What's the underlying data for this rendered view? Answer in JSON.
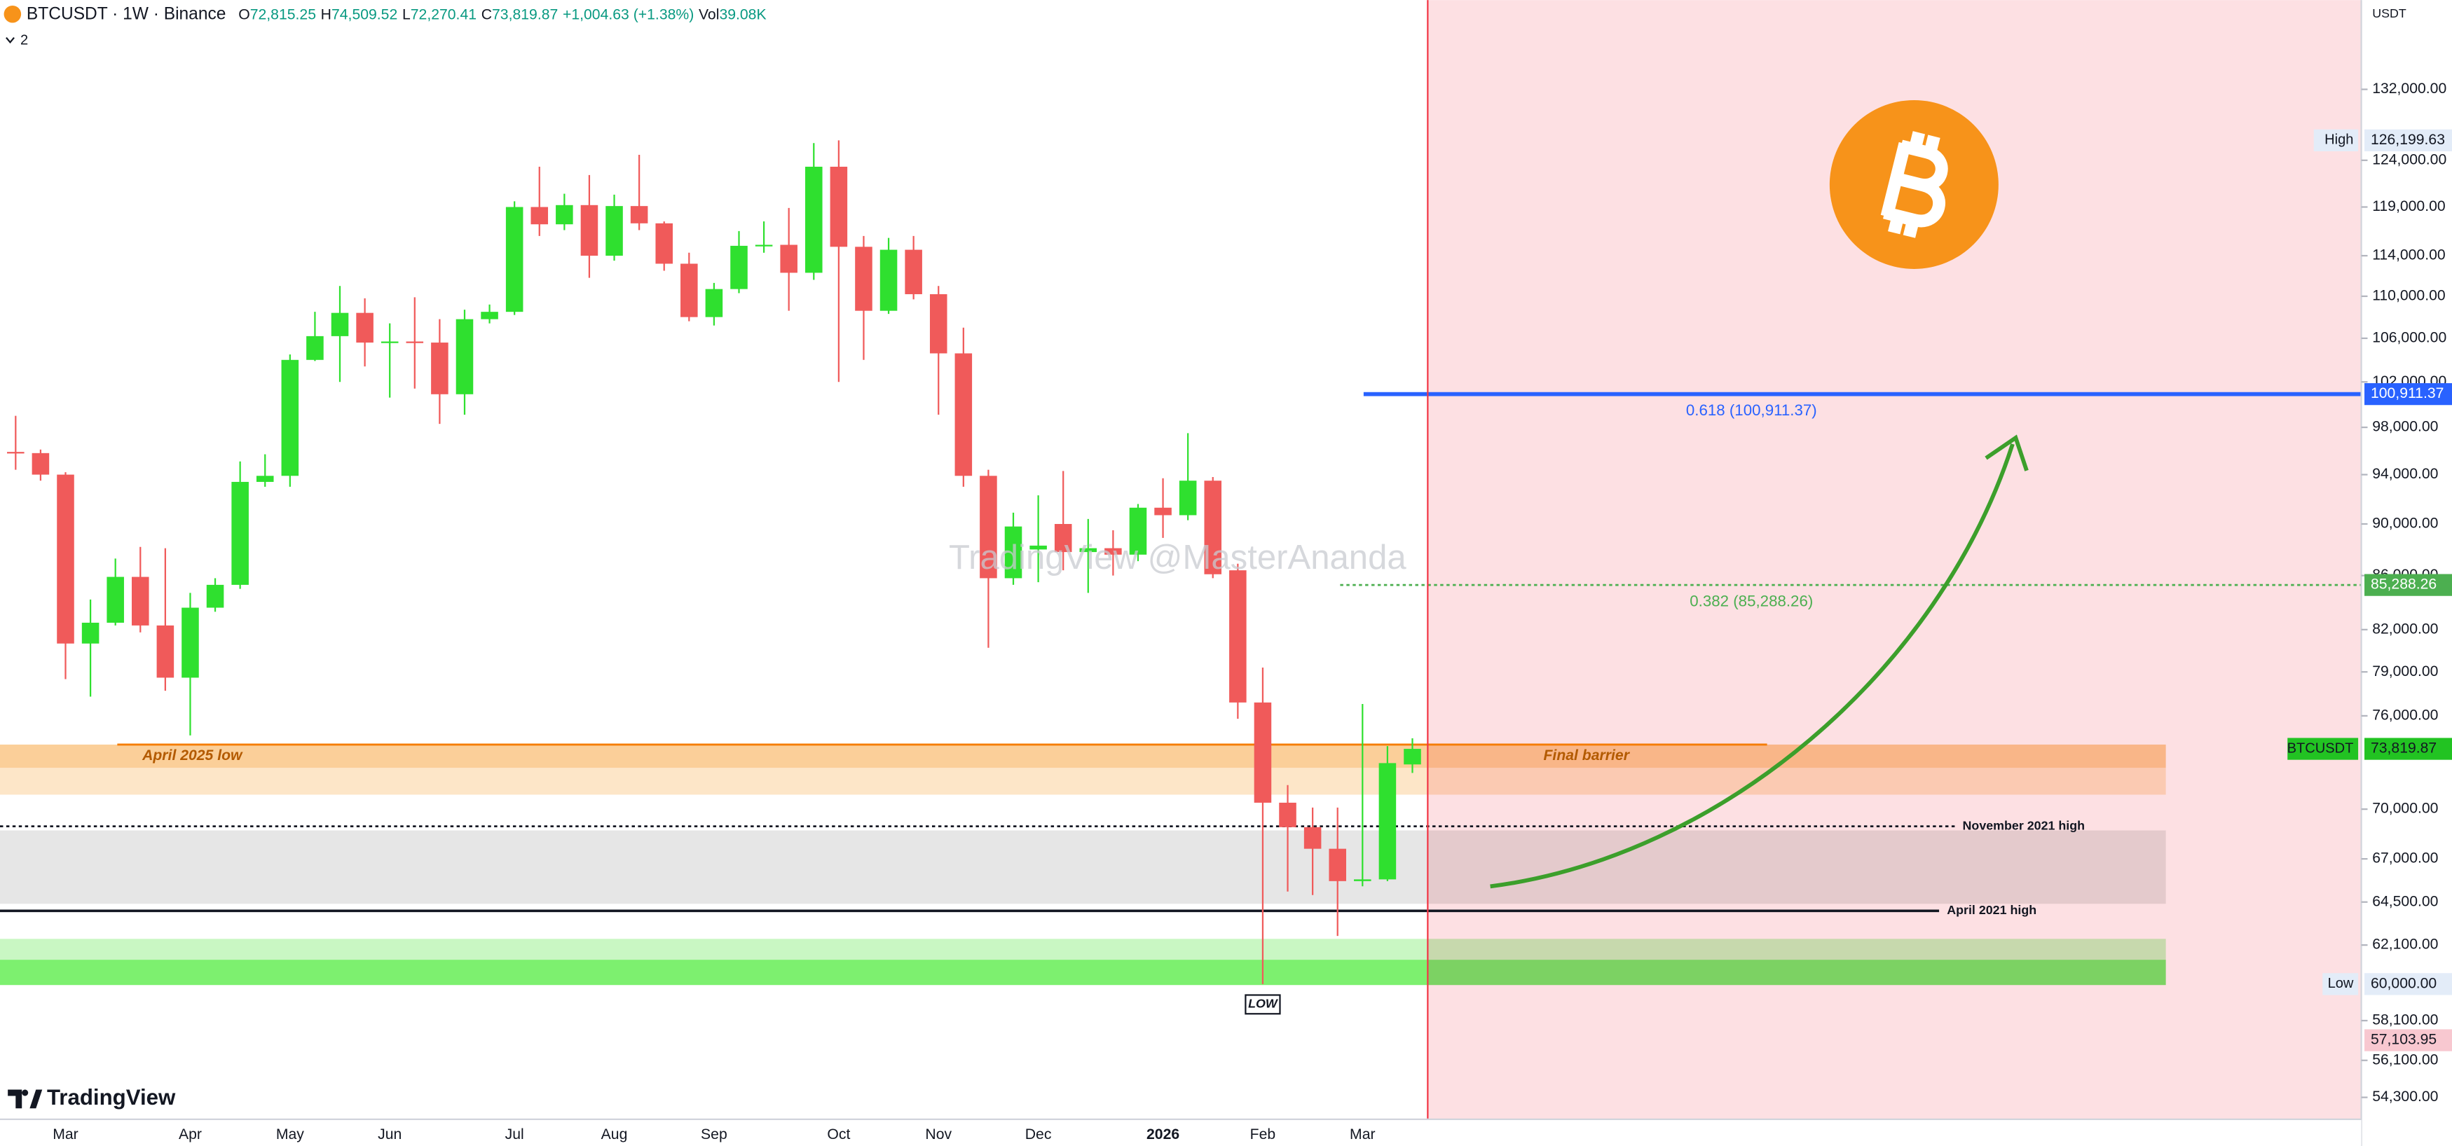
{
  "chart_data": {
    "type": "candlestick",
    "symbol_line": "BTCUSDT · 1W · Binance",
    "readout": [
      {
        "key": "O",
        "value": "72,815.25"
      },
      {
        "key": "H",
        "value": "74,509.52"
      },
      {
        "key": "L",
        "value": "72,270.41"
      },
      {
        "key": "C",
        "value": "73,819.87"
      }
    ],
    "change": "+1,004.63 (+1.38%)",
    "volume_key": "Vol",
    "volume": "39.08K",
    "indicators": 2,
    "axis_unit": "USDT",
    "watermark": "TradingView @MasterAnanda",
    "branding": "TradingView",
    "log_scale": true,
    "ylim": [
      53260,
      142800
    ],
    "yticks": [
      {
        "value": 132000,
        "label": "132,000.00"
      },
      {
        "value": 124000,
        "label": "124,000.00"
      },
      {
        "value": 119000,
        "label": "119,000.00"
      },
      {
        "value": 114000,
        "label": "114,000.00"
      },
      {
        "value": 110000,
        "label": "110,000.00"
      },
      {
        "value": 106000,
        "label": "106,000.00"
      },
      {
        "value": 102000,
        "label": "102,000.00"
      },
      {
        "value": 98000,
        "label": "98,000.00"
      },
      {
        "value": 94000,
        "label": "94,000.00"
      },
      {
        "value": 90000,
        "label": "90,000.00"
      },
      {
        "value": 86000,
        "label": "86,000.00"
      },
      {
        "value": 82000,
        "label": "82,000.00"
      },
      {
        "value": 79000,
        "label": "79,000.00"
      },
      {
        "value": 76000,
        "label": "76,000.00"
      },
      {
        "value": 70000,
        "label": "70,000.00"
      },
      {
        "value": 67000,
        "label": "67,000.00"
      },
      {
        "value": 64500,
        "label": "64,500.00"
      },
      {
        "value": 62100,
        "label": "62,100.00"
      },
      {
        "value": 58100,
        "label": "58,100.00"
      },
      {
        "value": 56100,
        "label": "56,100.00"
      },
      {
        "value": 54300,
        "label": "54,300.00"
      }
    ],
    "categories": [
      null,
      null,
      "Mar",
      null,
      null,
      null,
      null,
      "Apr",
      null,
      null,
      null,
      "May",
      null,
      null,
      null,
      "Jun",
      null,
      null,
      null,
      null,
      "Jul",
      null,
      null,
      null,
      "Aug",
      null,
      null,
      null,
      "Sep",
      null,
      null,
      null,
      null,
      "Oct",
      null,
      null,
      null,
      "Nov",
      null,
      null,
      null,
      "Dec",
      null,
      null,
      null,
      null,
      "2026",
      null,
      null,
      null,
      "Feb",
      null,
      null,
      null,
      "Mar",
      null,
      null
    ],
    "open": [
      95900,
      95800,
      94000,
      81000,
      82500,
      85900,
      82300,
      78600,
      83600,
      85300,
      93400,
      93900,
      104000,
      106200,
      108400,
      105600,
      105700,
      105600,
      100900,
      107800,
      108500,
      119000,
      117200,
      119200,
      114000,
      119100,
      117300,
      113200,
      108000,
      110700,
      115000,
      115100,
      112300,
      123300,
      114900,
      108600,
      114600,
      110200,
      104600,
      93900,
      85800,
      88000,
      90000,
      87800,
      88100,
      87600,
      91300,
      90700,
      93500,
      86400,
      76900,
      70400,
      68900,
      67600,
      65700,
      65800,
      72815.25
    ],
    "high": [
      99000,
      96100,
      94200,
      84200,
      87300,
      88200,
      88100,
      84700,
      85800,
      95100,
      95700,
      104500,
      108500,
      111000,
      109800,
      107400,
      109900,
      107800,
      108700,
      109200,
      119600,
      123300,
      120400,
      122400,
      120300,
      124600,
      117500,
      114300,
      111300,
      116500,
      117500,
      118900,
      125900,
      126199.63,
      116000,
      115800,
      116000,
      111000,
      107000,
      94400,
      90900,
      92300,
      94300,
      90400,
      89500,
      91600,
      93700,
      97500,
      93800,
      86900,
      79300,
      71500,
      70100,
      70100,
      76800,
      74000,
      74509.52
    ],
    "low": [
      94400,
      93500,
      78500,
      77300,
      82300,
      81800,
      77700,
      74700,
      83300,
      85000,
      93000,
      93000,
      103900,
      102000,
      103400,
      100600,
      101400,
      98300,
      99100,
      107400,
      108200,
      116000,
      116600,
      111800,
      113500,
      116600,
      112500,
      107600,
      107200,
      110300,
      114300,
      108600,
      111600,
      102000,
      104000,
      108300,
      109700,
      99100,
      93000,
      80700,
      85300,
      85500,
      86400,
      84700,
      86000,
      87100,
      88900,
      90300,
      85800,
      75800,
      60000,
      65100,
      64900,
      62600,
      65400,
      65700,
      72270.41
    ],
    "close": [
      95800,
      94000,
      81000,
      82500,
      85900,
      82300,
      78600,
      83600,
      85300,
      93400,
      93900,
      104000,
      106200,
      108400,
      105600,
      105700,
      105600,
      100900,
      107800,
      108500,
      119000,
      117200,
      119200,
      114000,
      119100,
      117300,
      113200,
      108000,
      110700,
      115000,
      115100,
      112300,
      123300,
      114900,
      108600,
      114600,
      110200,
      104600,
      93900,
      85800,
      89800,
      88300,
      87800,
      88100,
      87600,
      91300,
      90700,
      93500,
      86100,
      76900,
      70400,
      68900,
      67600,
      65700,
      65800,
      72900,
      73819.87
    ],
    "up_color": "#2fe02f",
    "down_color": "#f05a5a",
    "wick_color": "#555555",
    "zones": [
      {
        "from": 72600,
        "to": 74100,
        "color": "#fbcf99",
        "line_color": "#f57c00",
        "labels": [
          "April 2025 low",
          "Final barrier"
        ]
      },
      {
        "from": 70900,
        "to": 72600,
        "color": "#fde6c8"
      },
      {
        "from": 64400,
        "to": 68700,
        "color": "#e6e6e6"
      },
      {
        "from": 61300,
        "to": 62440,
        "color": "#c9f7c3"
      },
      {
        "from": 59950,
        "to": 61300,
        "color": "#7df06f"
      }
    ],
    "support_lines": [
      {
        "label": "November 2021 high",
        "value": 68950,
        "style": "dotted"
      },
      {
        "label": "April 2021 high",
        "value": 64000,
        "style": "solid"
      }
    ],
    "levels": [
      {
        "label": "0.618 (100,911.37)",
        "value": 100911.37,
        "color": "#2962ff",
        "style": "solid"
      },
      {
        "label": "0.382 (85,288.26)",
        "value": 85288.26,
        "color": "#4caf50",
        "style": "dotted"
      }
    ],
    "low_marker": "LOW",
    "markers": [
      {
        "value": 126199.63,
        "label": "126,199.63",
        "tag": "High",
        "color": "#e3ecf8",
        "text_color": "#131722"
      },
      {
        "value": 100911.37,
        "label": "100,911.37",
        "color": "#2962ff",
        "text_color": "#ffffff"
      },
      {
        "value": 85288.26,
        "label": "85,288.26",
        "color": "#4caf50",
        "text_color": "#ffffff"
      },
      {
        "value": 73819.87,
        "label": "73,819.87",
        "tag": "BTCUSDT",
        "color": "#22c322",
        "text_color": "#131722"
      },
      {
        "value": 60000,
        "label": "60,000.00",
        "tag": "Low",
        "color": "#e3ecf8",
        "text_color": "#131722"
      },
      {
        "value": 57103.95,
        "label": "57,103.95",
        "color": "#f8c8d0",
        "text_color": "#131722"
      }
    ]
  }
}
